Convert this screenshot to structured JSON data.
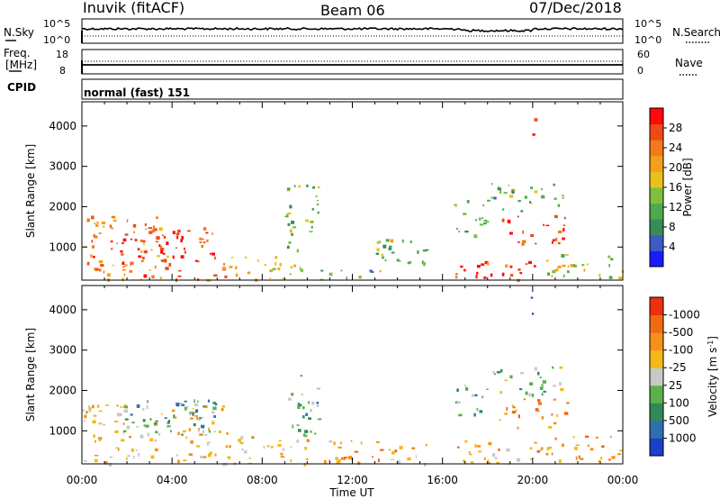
{
  "header": {
    "station": "Inuvik (fitACF)",
    "beam": "Beam 06",
    "date": "07/Dec/2018"
  },
  "panels": {
    "nsky": {
      "left_label": "N.Sky",
      "right_label": "N.Search",
      "left_ticks": [
        "10^5",
        "10^0"
      ],
      "right_ticks": [
        "10^5",
        "10^0"
      ]
    },
    "freq": {
      "left_label_1": "Freq.",
      "left_label_2": "[MHz]",
      "right_label": "Nave",
      "left_ticks": [
        "18",
        "8"
      ],
      "right_ticks": [
        "60",
        "0"
      ]
    },
    "cpid": {
      "label": "CPID",
      "value": "normal (fast) 151"
    }
  },
  "chart_data": [
    {
      "type": "heatmap",
      "name": "power",
      "ylabel": "Slant Range [km]",
      "ylim": [
        180,
        4600
      ],
      "y_ticks": [
        1000,
        2000,
        3000,
        4000
      ],
      "colorbar": {
        "label": "Power [dB]",
        "tick_labels": [
          "4",
          "8",
          "12",
          "16",
          "20",
          "24",
          "28"
        ],
        "colors": [
          "#1a1aff",
          "#3b5cc4",
          "#3a8a5a",
          "#4daa4d",
          "#7fc040",
          "#e8c21a",
          "#f5a01a",
          "#f27a1a",
          "#f04a14",
          "#ff0a0a"
        ]
      },
      "regions": [
        {
          "t": [
            0.0,
            4.0
          ],
          "r": [
            600,
            1800
          ],
          "level": 0.75
        },
        {
          "t": [
            1.5,
            4.5
          ],
          "r": [
            700,
            1500
          ],
          "level": 0.95
        },
        {
          "t": [
            4.5,
            6.0
          ],
          "r": [
            700,
            1600
          ],
          "level": 0.9
        },
        {
          "t": [
            0.0,
            6.5
          ],
          "r": [
            200,
            700
          ],
          "level": 0.8
        },
        {
          "t": [
            6.5,
            10.0
          ],
          "r": [
            200,
            800
          ],
          "level": 0.55
        },
        {
          "t": [
            9.0,
            10.5
          ],
          "r": [
            900,
            2600
          ],
          "level": 0.4
        },
        {
          "t": [
            10.5,
            13.0
          ],
          "r": [
            200,
            500
          ],
          "level": 0.35
        },
        {
          "t": [
            13.0,
            15.5
          ],
          "r": [
            250,
            1200
          ],
          "level": 0.45
        },
        {
          "t": [
            16.5,
            20.5
          ],
          "r": [
            200,
            700
          ],
          "level": 0.85
        },
        {
          "t": [
            16.5,
            18.0
          ],
          "r": [
            1300,
            2300
          ],
          "level": 0.45
        },
        {
          "t": [
            18.5,
            21.5
          ],
          "r": [
            1100,
            1800
          ],
          "level": 0.88
        },
        {
          "t": [
            18.0,
            21.5
          ],
          "r": [
            1900,
            2600
          ],
          "level": 0.35
        },
        {
          "t": [
            20.5,
            24.0
          ],
          "r": [
            250,
            900
          ],
          "level": 0.5
        },
        {
          "t": [
            19.8,
            20.1
          ],
          "r": [
            3700,
            4400
          ],
          "level": 0.95
        }
      ]
    },
    {
      "type": "heatmap",
      "name": "velocity",
      "ylabel": "Slant Range [km]",
      "xlabel": "Time UT",
      "ylim": [
        180,
        4600
      ],
      "y_ticks": [
        1000,
        2000,
        3000,
        4000
      ],
      "x_ticks": [
        "00:00",
        "04:00",
        "08:00",
        "12:00",
        "16:00",
        "20:00",
        "00:00"
      ],
      "colorbar": {
        "label": "Velocity [m s",
        "label_sup": "-1",
        "label_end": "]",
        "tick_labels": [
          "1000",
          "500",
          "100",
          "25",
          "-25",
          "-100",
          "-500",
          "-1000"
        ],
        "colors": [
          "#1a3fc8",
          "#2f6fb0",
          "#2e8b57",
          "#5ab04a",
          "#c8c8c8",
          "#f5b818",
          "#f59018",
          "#f06a14",
          "#ee3010"
        ]
      },
      "regions": [
        {
          "t": [
            0.0,
            6.5
          ],
          "r": [
            200,
            1700
          ],
          "level": 0.6
        },
        {
          "t": [
            1.5,
            6.0
          ],
          "r": [
            900,
            1800
          ],
          "level": 0.3
        },
        {
          "t": [
            6.5,
            10.0
          ],
          "r": [
            200,
            900
          ],
          "level": 0.6
        },
        {
          "t": [
            9.0,
            10.5
          ],
          "r": [
            900,
            2500
          ],
          "level": 0.35
        },
        {
          "t": [
            10.5,
            15.5
          ],
          "r": [
            200,
            800
          ],
          "level": 0.7
        },
        {
          "t": [
            16.5,
            20.5
          ],
          "r": [
            200,
            800
          ],
          "level": 0.65
        },
        {
          "t": [
            16.5,
            18.0
          ],
          "r": [
            1300,
            2200
          ],
          "level": 0.35
        },
        {
          "t": [
            18.5,
            21.5
          ],
          "r": [
            1100,
            1800
          ],
          "level": 0.72
        },
        {
          "t": [
            18.0,
            21.5
          ],
          "r": [
            1900,
            2600
          ],
          "level": 0.45
        },
        {
          "t": [
            20.5,
            24.0
          ],
          "r": [
            250,
            900
          ],
          "level": 0.68
        },
        {
          "t": [
            19.8,
            20.1
          ],
          "r": [
            3900,
            4400
          ],
          "level": 0.05
        }
      ]
    }
  ]
}
